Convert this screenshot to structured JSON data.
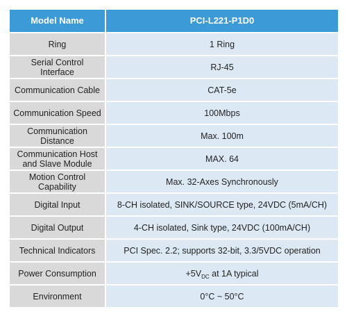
{
  "table": {
    "header": [
      "Model Name",
      "PCI-L221-P1D0"
    ],
    "rows": [
      [
        "Ring",
        "1 Ring"
      ],
      [
        "Serial Control\nInterface",
        "RJ-45"
      ],
      [
        "Communication Cable",
        "CAT-5e"
      ],
      [
        "Communication Speed",
        "100Mbps"
      ],
      [
        "Communication\nDistance",
        "Max. 100m"
      ],
      [
        "Communication Host\nand Slave Module",
        "MAX. 64"
      ],
      [
        "Motion Control\nCapability",
        "Max. 32-Axes Synchronously"
      ],
      [
        "Digital Input",
        "8-CH isolated, SINK/SOURCE type, 24VDC (5mA/CH)"
      ],
      [
        "Digital Output",
        "4-CH isolated, Sink type, 24VDC (100mA/CH)"
      ],
      [
        "Technical Indicators",
        "PCI Spec. 2.2; supports 32-bit, 3.3/5VDC operation"
      ],
      [
        "Power Consumption",
        {
          "text": "+5V",
          "subscript": "DC",
          "suffix": " at 1A typical"
        }
      ],
      [
        "Environment",
        "0°C ~ 50°C"
      ]
    ]
  }
}
